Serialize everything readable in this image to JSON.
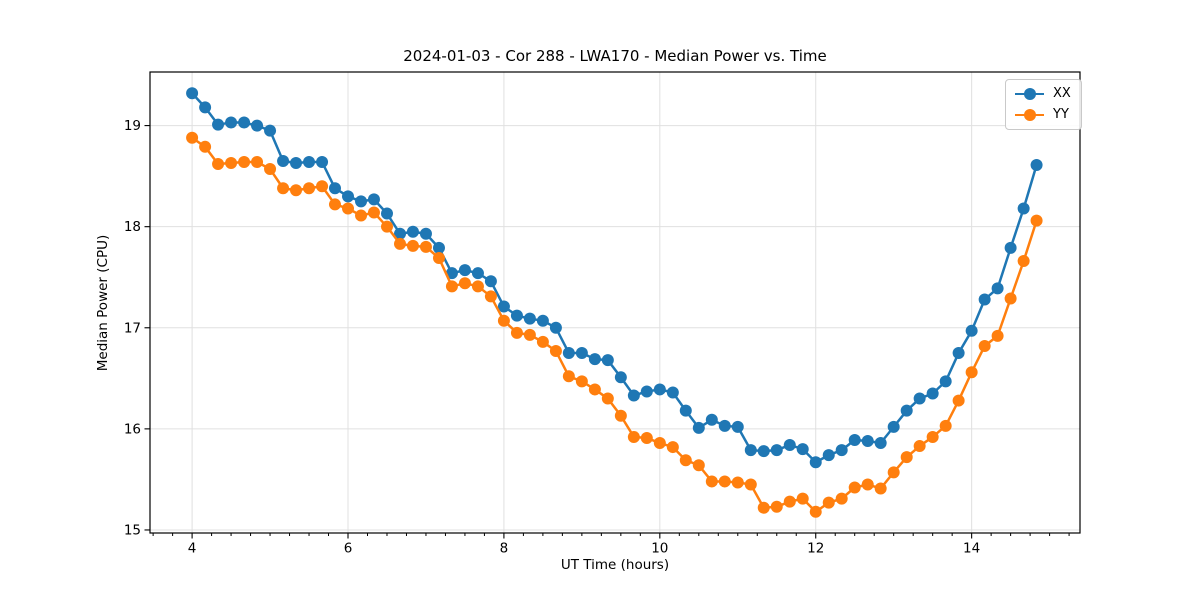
{
  "chart_data": {
    "type": "line",
    "title": "2024-01-03 - Cor 288 - LWA170 - Median Power vs. Time",
    "xlabel": "UT Time (hours)",
    "ylabel": "Median Power (CPU)",
    "grid": true,
    "legend_position": "upper right",
    "marker": "circle",
    "xlim": [
      3.46,
      15.39
    ],
    "ylim": [
      14.97,
      19.53
    ],
    "x_ticks": [
      4,
      6,
      8,
      10,
      12,
      14
    ],
    "y_ticks": [
      15,
      16,
      17,
      18,
      19
    ],
    "x_minor_tick_step": 0.25,
    "x_minor_tick_range": [
      3.5,
      15.25
    ],
    "x": [
      4.0,
      4.167,
      4.333,
      4.5,
      4.667,
      4.833,
      5.0,
      5.167,
      5.333,
      5.5,
      5.667,
      5.833,
      6.0,
      6.167,
      6.333,
      6.5,
      6.667,
      6.833,
      7.0,
      7.167,
      7.333,
      7.5,
      7.667,
      7.833,
      8.0,
      8.167,
      8.333,
      8.5,
      8.667,
      8.833,
      9.0,
      9.167,
      9.333,
      9.5,
      9.667,
      9.833,
      10.0,
      10.167,
      10.333,
      10.5,
      10.667,
      10.833,
      11.0,
      11.167,
      11.333,
      11.5,
      11.667,
      11.833,
      12.0,
      12.167,
      12.333,
      12.5,
      12.667,
      12.833,
      13.0,
      13.167,
      13.333,
      13.5,
      13.667,
      13.833,
      14.0,
      14.167,
      14.333,
      14.5,
      14.667,
      14.833
    ],
    "series": [
      {
        "name": "XX",
        "color": "#1f77b4",
        "values": [
          19.32,
          19.18,
          19.01,
          19.03,
          19.03,
          19.0,
          18.95,
          18.65,
          18.63,
          18.64,
          18.64,
          18.38,
          18.3,
          18.25,
          18.27,
          18.13,
          17.93,
          17.95,
          17.93,
          17.79,
          17.54,
          17.57,
          17.54,
          17.46,
          17.21,
          17.12,
          17.09,
          17.07,
          17.0,
          16.75,
          16.75,
          16.69,
          16.68,
          16.51,
          16.33,
          16.37,
          16.39,
          16.36,
          16.18,
          16.01,
          16.09,
          16.03,
          16.02,
          15.79,
          15.78,
          15.79,
          15.84,
          15.8,
          15.67,
          15.74,
          15.79,
          15.89,
          15.88,
          15.86,
          16.02,
          16.18,
          16.3,
          16.35,
          16.47,
          16.75,
          16.97,
          17.28,
          17.39,
          17.79,
          18.18,
          18.61
        ]
      },
      {
        "name": "YY",
        "color": "#ff7f0e",
        "values": [
          18.88,
          18.79,
          18.62,
          18.63,
          18.64,
          18.64,
          18.57,
          18.38,
          18.36,
          18.38,
          18.4,
          18.22,
          18.18,
          18.11,
          18.14,
          18.0,
          17.83,
          17.81,
          17.8,
          17.69,
          17.41,
          17.44,
          17.41,
          17.31,
          17.07,
          16.95,
          16.93,
          16.86,
          16.77,
          16.52,
          16.47,
          16.39,
          16.3,
          16.13,
          15.92,
          15.91,
          15.86,
          15.82,
          15.69,
          15.64,
          15.48,
          15.48,
          15.47,
          15.45,
          15.22,
          15.23,
          15.28,
          15.31,
          15.18,
          15.27,
          15.31,
          15.42,
          15.45,
          15.41,
          15.57,
          15.72,
          15.83,
          15.92,
          16.03,
          16.28,
          16.56,
          16.82,
          16.92,
          17.29,
          17.66,
          18.06
        ]
      }
    ]
  }
}
